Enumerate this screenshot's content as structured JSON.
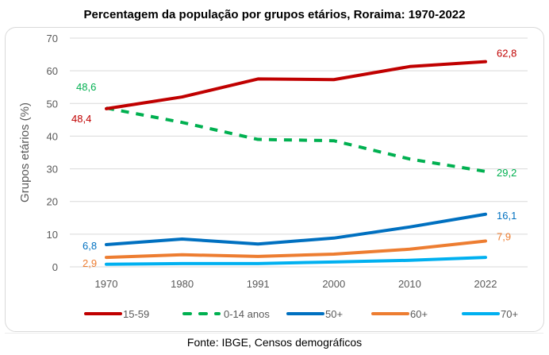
{
  "chart_data": {
    "type": "line",
    "title": "Percentagem da população por grupos etários, Roraima: 1970-2022",
    "xlabel": "",
    "ylabel": "Grupos etários (%)",
    "categories": [
      "1970",
      "1980",
      "1991",
      "2000",
      "2010",
      "2022"
    ],
    "ylim": [
      0,
      70
    ],
    "yticks": [
      0,
      10,
      20,
      30,
      40,
      50,
      60,
      70
    ],
    "grid": true,
    "legend_position": "bottom",
    "series": [
      {
        "name": "15-59",
        "color": "#c00000",
        "dashed": false,
        "values": [
          48.4,
          52.0,
          57.5,
          57.3,
          61.3,
          62.8
        ],
        "labels": {
          "first": "48,4",
          "last": "62,8"
        }
      },
      {
        "name": "0-14 anos",
        "color": "#00b050",
        "dashed": true,
        "values": [
          48.6,
          44.2,
          39.0,
          38.6,
          33.0,
          29.2
        ],
        "labels": {
          "first": "48,6",
          "last": "29,2"
        }
      },
      {
        "name": "50+",
        "color": "#0070c0",
        "dashed": false,
        "values": [
          6.8,
          8.5,
          7.0,
          8.8,
          12.2,
          16.1
        ],
        "labels": {
          "first": "6,8",
          "last": "16,1"
        }
      },
      {
        "name": "60+",
        "color": "#ed7d31",
        "dashed": false,
        "values": [
          2.9,
          3.7,
          3.2,
          3.9,
          5.4,
          7.9
        ],
        "labels": {
          "first": "2,9",
          "last": "7,9"
        }
      },
      {
        "name": "70+",
        "color": "#00b0f0",
        "dashed": false,
        "values": [
          0.8,
          1.0,
          1.0,
          1.5,
          2.0,
          2.9
        ],
        "labels": {}
      }
    ]
  },
  "source": "Fonte: IBGE, Censos demográficos"
}
